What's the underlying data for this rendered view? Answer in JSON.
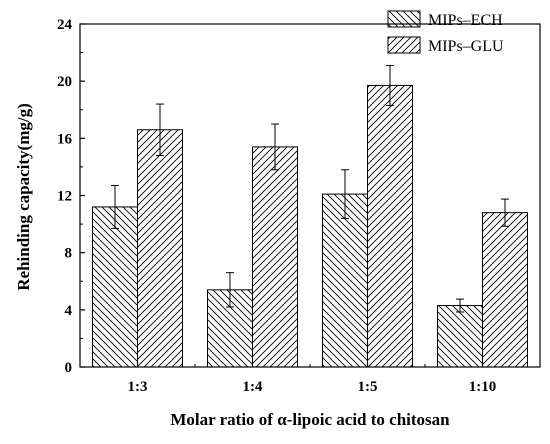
{
  "chart_data": {
    "type": "bar",
    "title": "",
    "xlabel": "Molar ratio of α-lipoic acid to chitosan",
    "ylabel": "Rehinding capacity(mg/g)",
    "categories": [
      "1:3",
      "1:4",
      "1:5",
      "1:10"
    ],
    "ylim": [
      0,
      24
    ],
    "yticks": [
      0,
      4,
      8,
      12,
      16,
      20,
      24
    ],
    "grid": false,
    "legend_position": "top-right",
    "series": [
      {
        "name": "MIPs–ECH",
        "values": [
          11.2,
          5.4,
          12.1,
          4.3
        ],
        "errors": [
          1.5,
          1.2,
          1.7,
          0.45
        ],
        "hatch": "backslash",
        "color": "#000000"
      },
      {
        "name": "MIPs–GLU",
        "values": [
          16.6,
          15.4,
          19.7,
          10.8
        ],
        "errors": [
          1.8,
          1.6,
          1.4,
          0.95
        ],
        "hatch": "slash",
        "color": "#000000"
      }
    ]
  }
}
